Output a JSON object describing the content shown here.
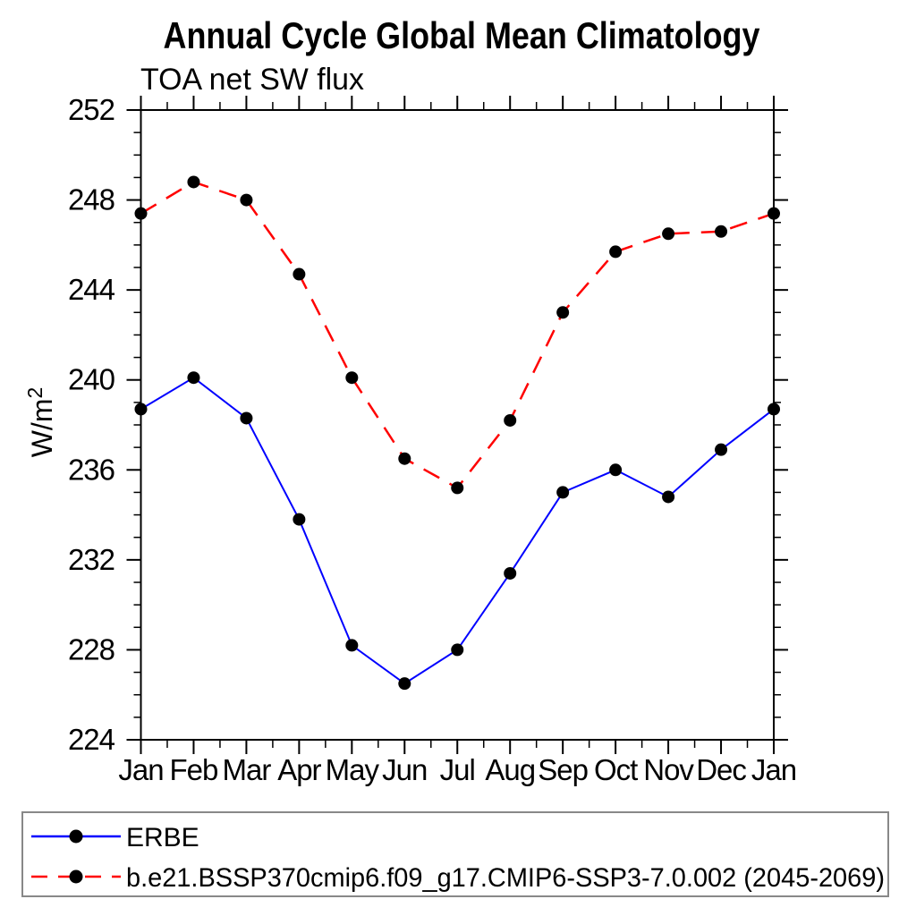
{
  "chart_data": {
    "type": "line",
    "title": "Annual Cycle Global Mean Climatology",
    "subtitle": "TOA net SW flux",
    "ylabel": "W/m",
    "ylabel_superscript": "2",
    "categories": [
      "Jan",
      "Feb",
      "Mar",
      "Apr",
      "May",
      "Jun",
      "Jul",
      "Aug",
      "Sep",
      "Oct",
      "Nov",
      "Dec",
      "Jan"
    ],
    "ylim": [
      224,
      252
    ],
    "ytick_major_step": 4,
    "ytick_minor_step": 1,
    "yticks": [
      224,
      228,
      232,
      236,
      240,
      244,
      248,
      252
    ],
    "grid": false,
    "legend_position": "bottom",
    "series": [
      {
        "name": "ERBE",
        "line_style": "solid",
        "color": "#0000ff",
        "marker": "filled-circle",
        "marker_color": "#000000",
        "values": [
          238.7,
          240.1,
          238.3,
          233.8,
          228.2,
          226.5,
          228.0,
          231.4,
          235.0,
          236.0,
          234.8,
          236.9,
          238.7
        ]
      },
      {
        "name": "b.e21.BSSP370cmip6.f09_g17.CMIP6-SSP3-7.0.002 (2045-2069)",
        "line_style": "dashed",
        "color": "#ff0000",
        "marker": "filled-circle",
        "marker_color": "#000000",
        "values": [
          247.4,
          248.8,
          248.0,
          244.7,
          240.1,
          236.5,
          235.2,
          238.2,
          243.0,
          245.7,
          246.5,
          246.6,
          247.4
        ]
      }
    ]
  },
  "colors": {
    "background": "#ffffff",
    "axis_frame": "#000000",
    "legend_border": "#888888",
    "erbe_line": "#0000ff",
    "model_line": "#ff0000",
    "marker": "#000000"
  }
}
